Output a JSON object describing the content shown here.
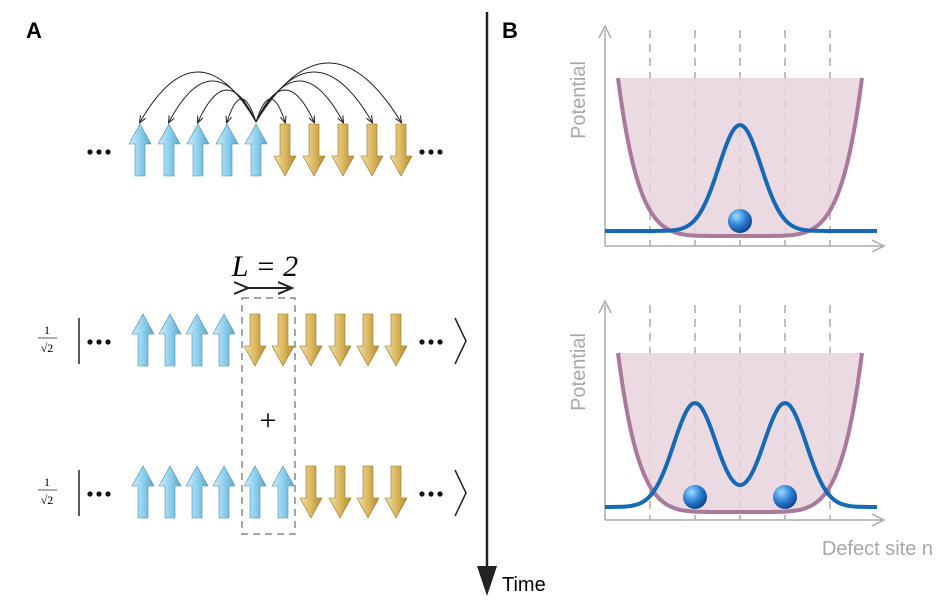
{
  "panel_a": {
    "label": "A",
    "length_label": "L = 2",
    "prefactor": {
      "numerator": "1",
      "denominator": "√2"
    },
    "plus": "+"
  },
  "time_axis": {
    "label": "Time"
  },
  "panel_b": {
    "label": "B",
    "plots": [
      {
        "y_label": "Potential"
      },
      {
        "y_label": "Potential",
        "x_label": "Defect site n"
      }
    ]
  }
}
